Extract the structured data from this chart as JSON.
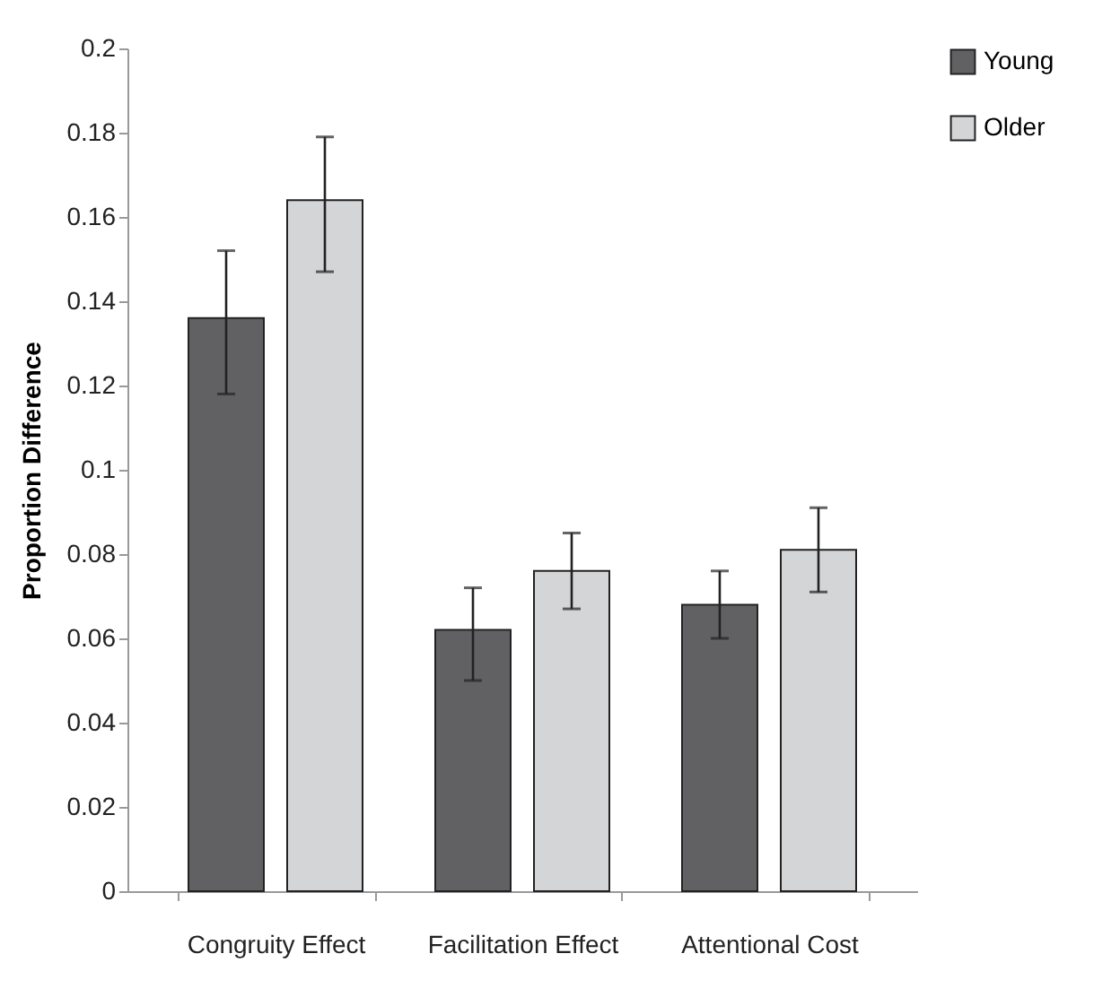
{
  "chart_data": {
    "type": "bar",
    "ylabel": "Proportion Difference",
    "categories": [
      "Congruity Effect",
      "Facilitation Effect",
      "Attentional Cost"
    ],
    "series": [
      {
        "name": "Young",
        "color": "#616163",
        "values": [
          0.136,
          0.062,
          0.068
        ],
        "errors": [
          [
            0.118,
            0.152
          ],
          [
            0.05,
            0.072
          ],
          [
            0.06,
            0.076
          ]
        ]
      },
      {
        "name": "Older",
        "color": "#d4d5d7",
        "values": [
          0.164,
          0.076,
          0.081
        ],
        "errors": [
          [
            0.147,
            0.179
          ],
          [
            0.067,
            0.085
          ],
          [
            0.071,
            0.091
          ]
        ]
      }
    ],
    "ylim": [
      0,
      0.2
    ],
    "yticks": [
      0,
      0.02,
      0.04,
      0.06,
      0.08,
      0.1,
      0.12,
      0.14,
      0.16,
      0.18,
      0.2
    ],
    "grid": false,
    "legend": "right"
  }
}
